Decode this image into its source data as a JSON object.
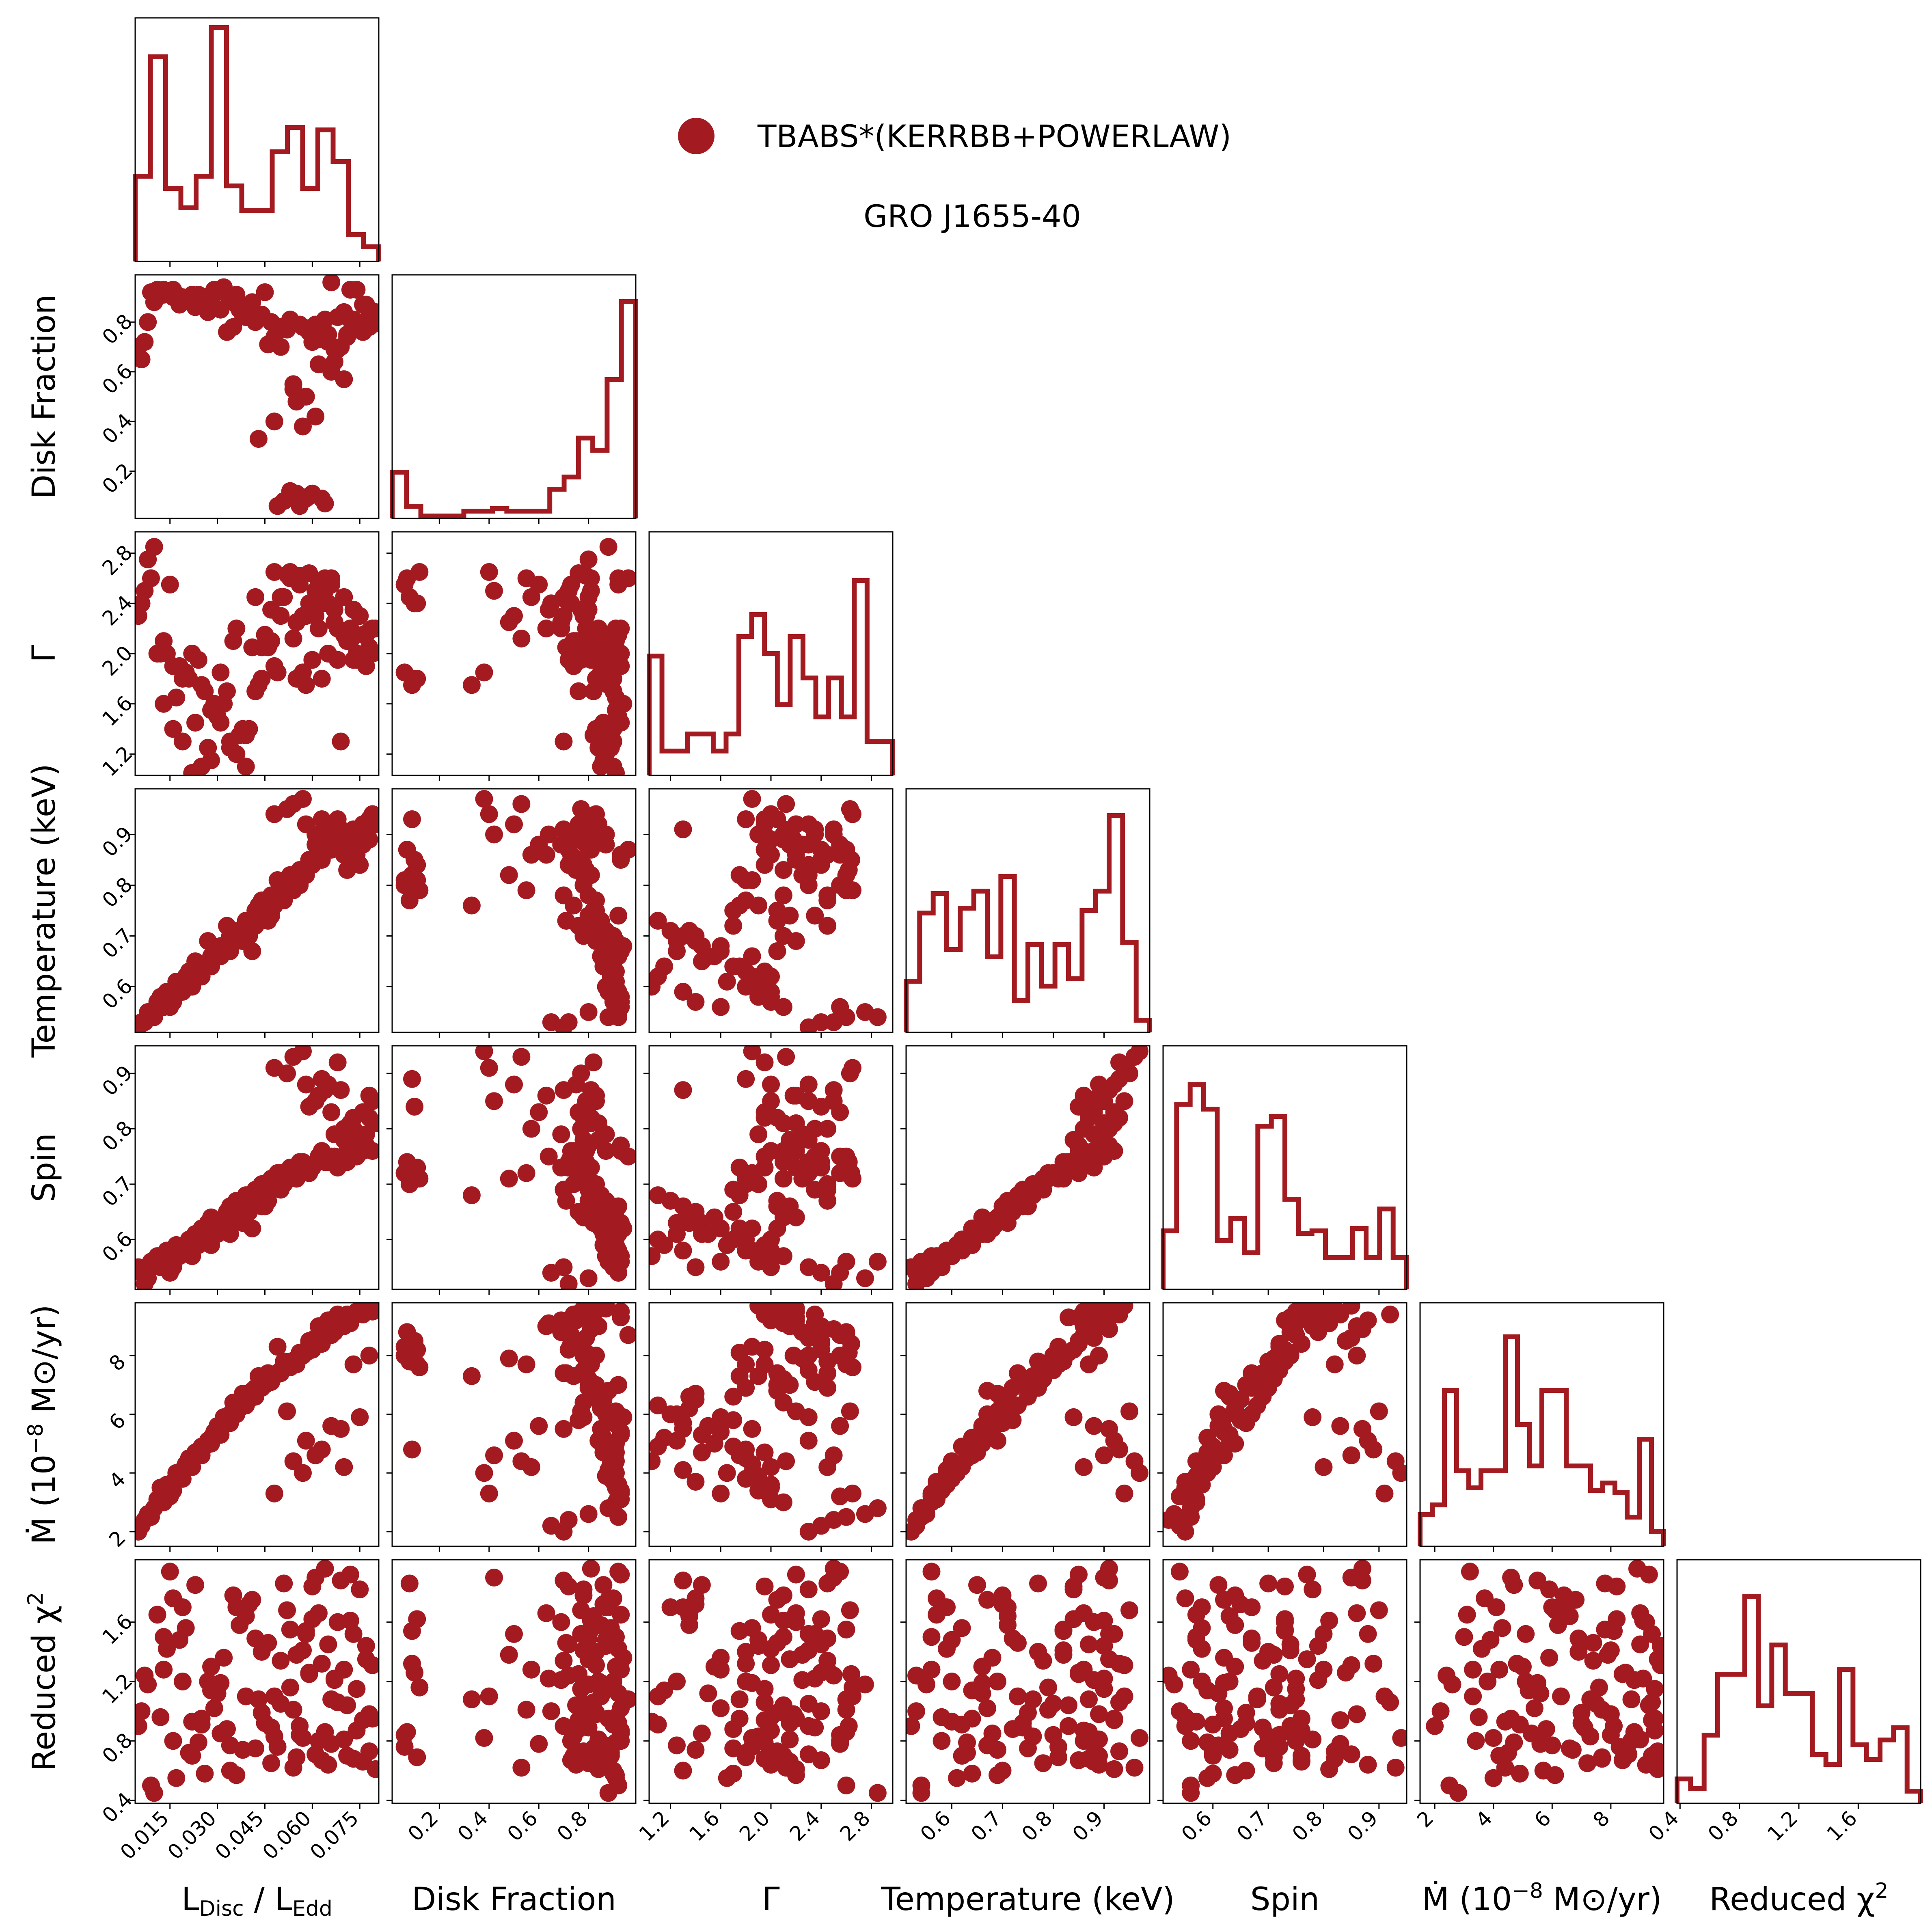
{
  "chart_data": {
    "type": "corner",
    "color": "#A31A20",
    "legend": {
      "label": "TBABS*(KERRBB+POWERLAW)",
      "placement": "top-center"
    },
    "annotation": "GRO J1655-40",
    "parameters": [
      {
        "key": "ldisc",
        "label": "L_Disc / L_Edd",
        "range": [
          0.004,
          0.081
        ],
        "ticks": [
          0.015,
          0.03,
          0.045,
          0.06,
          0.075
        ],
        "tick_labels": [
          "0.015",
          "0.030",
          "0.045",
          "0.060",
          "0.075"
        ]
      },
      {
        "key": "fdisk",
        "label": "Disk Fraction",
        "range": [
          0.01,
          0.99
        ],
        "ticks": [
          0.2,
          0.4,
          0.6,
          0.8
        ],
        "tick_labels": [
          "0.2",
          "0.4",
          "0.6",
          "0.8"
        ]
      },
      {
        "key": "gamma",
        "label": "Γ",
        "range": [
          1.03,
          2.97
        ],
        "ticks": [
          1.2,
          1.6,
          2.0,
          2.4,
          2.8
        ],
        "tick_labels": [
          "1.2",
          "1.6",
          "2.0",
          "2.4",
          "2.8"
        ]
      },
      {
        "key": "temp",
        "label": "Temperature (keV)",
        "range": [
          0.51,
          0.99
        ],
        "ticks": [
          0.6,
          0.7,
          0.8,
          0.9
        ],
        "tick_labels": [
          "0.6",
          "0.7",
          "0.8",
          "0.9"
        ]
      },
      {
        "key": "spin",
        "label": "Spin",
        "range": [
          0.51,
          0.95
        ],
        "ticks": [
          0.6,
          0.7,
          0.8,
          0.9
        ],
        "tick_labels": [
          "0.6",
          "0.7",
          "0.8",
          "0.9"
        ]
      },
      {
        "key": "mdot",
        "label": "Ṁ (10⁻⁸ M⊙/yr)",
        "range": [
          1.5,
          9.8
        ],
        "ticks": [
          2,
          4,
          6,
          8
        ],
        "tick_labels": [
          "2",
          "4",
          "6",
          "8"
        ]
      },
      {
        "key": "chi2",
        "label": "Reduced χ²",
        "range": [
          0.38,
          2.02
        ],
        "ticks": [
          0.4,
          0.8,
          1.2,
          1.6
        ],
        "tick_labels": [
          "0.4",
          "0.8",
          "1.2",
          "1.6"
        ]
      }
    ],
    "histograms": [
      [
        0.35,
        0.84,
        0.3,
        0.22,
        0.35,
        0.96,
        0.31,
        0.21,
        0.21,
        0.45,
        0.55,
        0.3,
        0.54,
        0.41,
        0.11,
        0.06
      ],
      [
        0.19,
        0.05,
        0.01,
        0.01,
        0.01,
        0.03,
        0.03,
        0.04,
        0.03,
        0.03,
        0.03,
        0.12,
        0.17,
        0.33,
        0.28,
        0.57,
        0.89
      ],
      [
        0.49,
        0.1,
        0.1,
        0.17,
        0.17,
        0.1,
        0.17,
        0.57,
        0.66,
        0.5,
        0.29,
        0.57,
        0.4,
        0.24,
        0.4,
        0.24,
        0.8,
        0.14,
        0.14
      ],
      [
        0.21,
        0.49,
        0.57,
        0.34,
        0.51,
        0.58,
        0.31,
        0.64,
        0.13,
        0.36,
        0.19,
        0.36,
        0.22,
        0.5,
        0.58,
        0.89,
        0.37,
        0.05
      ],
      [
        0.24,
        0.76,
        0.84,
        0.74,
        0.2,
        0.29,
        0.15,
        0.67,
        0.71,
        0.37,
        0.23,
        0.24,
        0.13,
        0.13,
        0.25,
        0.13,
        0.33,
        0.13
      ],
      [
        0.13,
        0.17,
        0.64,
        0.31,
        0.24,
        0.31,
        0.31,
        0.86,
        0.5,
        0.33,
        0.64,
        0.64,
        0.33,
        0.33,
        0.23,
        0.26,
        0.22,
        0.12,
        0.44,
        0.06
      ],
      [
        0.1,
        0.06,
        0.28,
        0.53,
        0.53,
        0.85,
        0.4,
        0.65,
        0.45,
        0.45,
        0.2,
        0.16,
        0.55,
        0.24,
        0.18,
        0.26,
        0.31,
        0.05
      ]
    ],
    "samples": {
      "ldisc": [
        0.005,
        0.009,
        0.013,
        0.016,
        0.019,
        0.022,
        0.025,
        0.028,
        0.031,
        0.034,
        0.036,
        0.039,
        0.042,
        0.044,
        0.047,
        0.05,
        0.053,
        0.056,
        0.059,
        0.062,
        0.065,
        0.068,
        0.071,
        0.074,
        0.077,
        0.079,
        0.006,
        0.011,
        0.017,
        0.023,
        0.027,
        0.033,
        0.041,
        0.048,
        0.054,
        0.058,
        0.061,
        0.066,
        0.07,
        0.075,
        0.078,
        0.014,
        0.021,
        0.029,
        0.037,
        0.045,
        0.052,
        0.057,
        0.063,
        0.069,
        0.073,
        0.008,
        0.018,
        0.026,
        0.035,
        0.043,
        0.049,
        0.055,
        0.06,
        0.064,
        0.067,
        0.072,
        0.076,
        0.012,
        0.02,
        0.03,
        0.038,
        0.046,
        0.051,
        0.056,
        0.059,
        0.062,
        0.065,
        0.068,
        0.01,
        0.015,
        0.024,
        0.032,
        0.04,
        0.047,
        0.053,
        0.058,
        0.061,
        0.064,
        0.071,
        0.074,
        0.077,
        0.08,
        0.007,
        0.016,
        0.022,
        0.028,
        0.034,
        0.039,
        0.044,
        0.05,
        0.055,
        0.06,
        0.066,
        0.07,
        0.073,
        0.078,
        0.013,
        0.019,
        0.025,
        0.031,
        0.036,
        0.042,
        0.048,
        0.054,
        0.057,
        0.063,
        0.067,
        0.072,
        0.076,
        0.079
      ],
      "fdisk": [
        0.7,
        0.92,
        0.91,
        0.93,
        0.9,
        0.89,
        0.88,
        0.91,
        0.93,
        0.9,
        0.87,
        0.85,
        0.82,
        0.83,
        0.8,
        0.78,
        0.81,
        0.79,
        0.76,
        0.73,
        0.72,
        0.69,
        0.74,
        0.77,
        0.8,
        0.79,
        0.65,
        0.93,
        0.91,
        0.86,
        0.84,
        0.76,
        0.88,
        0.4,
        0.53,
        0.5,
        0.42,
        0.6,
        0.57,
        0.78,
        0.83,
        0.92,
        0.89,
        0.93,
        0.85,
        0.92,
        0.77,
        0.38,
        0.09,
        0.7,
        0.81,
        0.8,
        0.87,
        0.9,
        0.78,
        0.33,
        0.06,
        0.48,
        0.11,
        0.07,
        0.64,
        0.93,
        0.87,
        0.91,
        0.89,
        0.92,
        0.83,
        0.71,
        0.08,
        0.06,
        0.1,
        0.63,
        0.75,
        0.82,
        0.88,
        0.92,
        0.91,
        0.94,
        0.86,
        0.8,
        0.12,
        0.09,
        0.79,
        0.81,
        0.75,
        0.93,
        0.87,
        0.84,
        0.72,
        0.9,
        0.91,
        0.86,
        0.89,
        0.82,
        0.83,
        0.7,
        0.11,
        0.72,
        0.96,
        0.84,
        0.77,
        0.78,
        0.93,
        0.88,
        0.9,
        0.85,
        0.91,
        0.8,
        0.74,
        0.55,
        0.78,
        0.73,
        0.69,
        0.81,
        0.76,
        0.83
      ],
      "gamma": [
        2.3,
        2.6,
        2.1,
        1.9,
        1.8,
        2.0,
        1.75,
        1.55,
        1.45,
        1.3,
        1.2,
        1.1,
        1.7,
        1.8,
        2.1,
        2.3,
        2.6,
        2.62,
        2.64,
        2.55,
        2.4,
        2.2,
        2.1,
        1.95,
        2.15,
        2.2,
        2.4,
        2.0,
        1.65,
        1.45,
        1.25,
        1.7,
        2.05,
        2.65,
        2.12,
        2.3,
        2.5,
        2.55,
        2.45,
        2.3,
        2.18,
        2.0,
        1.8,
        1.6,
        1.35,
        2.15,
        2.63,
        1.85,
        1.8,
        1.3,
        1.95,
        2.75,
        1.9,
        1.7,
        2.1,
        1.75,
        1.85,
        2.25,
        2.4,
        2.6,
        2.35,
        2.2,
        2.15,
        2.0,
        1.85,
        1.5,
        1.4,
        2.05,
        2.45,
        2.55,
        2.4,
        2.2,
        2.0,
        1.95,
        2.85,
        2.55,
        1.95,
        1.6,
        1.4,
        2.35,
        2.65,
        1.75,
        2.3,
        2.5,
        2.1,
        2.0,
        1.9,
        2.2,
        2.5,
        1.4,
        1.05,
        1.15,
        1.25,
        1.35,
        2.05,
        2.45,
        1.8,
        1.95,
        2.6,
        2.15,
        2.35,
        2.05,
        1.6,
        1.3,
        1.1,
        1.85,
        2.2,
        2.45,
        1.9,
        2.6,
        2.3,
        2.4,
        2.25,
        2.1,
        1.95,
        2.0
      ],
      "temp": [
        0.52,
        0.54,
        0.56,
        0.58,
        0.6,
        0.62,
        0.64,
        0.66,
        0.68,
        0.7,
        0.71,
        0.73,
        0.75,
        0.77,
        0.78,
        0.8,
        0.82,
        0.83,
        0.85,
        0.86,
        0.87,
        0.88,
        0.89,
        0.9,
        0.91,
        0.92,
        0.53,
        0.57,
        0.61,
        0.65,
        0.69,
        0.72,
        0.67,
        0.94,
        0.96,
        0.92,
        0.9,
        0.88,
        0.86,
        0.84,
        0.89,
        0.59,
        0.63,
        0.67,
        0.71,
        0.74,
        0.95,
        0.97,
        0.93,
        0.91,
        0.87,
        0.55,
        0.6,
        0.64,
        0.7,
        0.76,
        0.81,
        0.82,
        0.84,
        0.87,
        0.9,
        0.85,
        0.88,
        0.58,
        0.62,
        0.66,
        0.69,
        0.73,
        0.77,
        0.8,
        0.85,
        0.86,
        0.89,
        0.93,
        0.54,
        0.56,
        0.63,
        0.68,
        0.7,
        0.74,
        0.79,
        0.82,
        0.88,
        0.91,
        0.83,
        0.86,
        0.9,
        0.92,
        0.53,
        0.57,
        0.6,
        0.64,
        0.67,
        0.71,
        0.75,
        0.78,
        0.81,
        0.84,
        0.87,
        0.89,
        0.91,
        0.93,
        0.56,
        0.59,
        0.62,
        0.66,
        0.69,
        0.72,
        0.76,
        0.79,
        0.82,
        0.85,
        0.88,
        0.9,
        0.92,
        0.94
      ],
      "spin": [
        0.55,
        0.56,
        0.57,
        0.56,
        0.58,
        0.6,
        0.62,
        0.64,
        0.63,
        0.66,
        0.67,
        0.68,
        0.69,
        0.7,
        0.71,
        0.72,
        0.73,
        0.74,
        0.72,
        0.75,
        0.74,
        0.73,
        0.76,
        0.75,
        0.77,
        0.76,
        0.54,
        0.57,
        0.59,
        0.61,
        0.63,
        0.65,
        0.62,
        0.91,
        0.93,
        0.88,
        0.85,
        0.83,
        0.8,
        0.78,
        0.86,
        0.58,
        0.6,
        0.62,
        0.64,
        0.66,
        0.9,
        0.94,
        0.89,
        0.87,
        0.82,
        0.53,
        0.57,
        0.6,
        0.64,
        0.68,
        0.72,
        0.71,
        0.73,
        0.74,
        0.75,
        0.77,
        0.76,
        0.55,
        0.58,
        0.61,
        0.63,
        0.67,
        0.7,
        0.72,
        0.84,
        0.86,
        0.88,
        0.92,
        0.56,
        0.54,
        0.59,
        0.62,
        0.65,
        0.69,
        0.71,
        0.73,
        0.85,
        0.87,
        0.74,
        0.76,
        0.79,
        0.81,
        0.52,
        0.55,
        0.57,
        0.59,
        0.61,
        0.63,
        0.66,
        0.69,
        0.71,
        0.73,
        0.75,
        0.78,
        0.8,
        0.82,
        0.56,
        0.58,
        0.6,
        0.62,
        0.64,
        0.67,
        0.7,
        0.72,
        0.74,
        0.76,
        0.79,
        0.81,
        0.83,
        0.85
      ],
      "mdot": [
        2.0,
        2.5,
        3.0,
        3.4,
        3.8,
        4.2,
        4.6,
        5.0,
        5.3,
        5.7,
        6.0,
        6.3,
        6.6,
        6.9,
        7.2,
        7.5,
        7.8,
        8.1,
        8.4,
        8.7,
        9.0,
        9.2,
        9.4,
        9.5,
        9.6,
        9.5,
        2.2,
        3.1,
        4.0,
        4.7,
        5.1,
        5.8,
        6.8,
        3.3,
        4.4,
        5.1,
        4.6,
        5.6,
        4.2,
        5.9,
        8.0,
        3.6,
        4.5,
        5.4,
        6.2,
        7.0,
        6.1,
        4.0,
        4.8,
        5.5,
        7.7,
        2.6,
        3.9,
        4.9,
        6.4,
        7.3,
        8.3,
        7.9,
        8.2,
        8.8,
        9.1,
        9.3,
        9.6,
        3.5,
        4.3,
        5.6,
        6.7,
        7.4,
        7.8,
        8.0,
        8.5,
        9.0,
        9.2,
        9.4,
        2.8,
        3.2,
        4.7,
        5.9,
        6.5,
        7.1,
        7.6,
        8.1,
        8.6,
        8.9,
        9.3,
        9.5,
        9.7,
        9.6,
        2.4,
        3.7,
        4.4,
        5.2,
        6.0,
        6.6,
        7.0,
        7.4,
        7.7,
        8.2,
        8.7,
        9.0,
        9.4,
        9.6,
        3.3,
        4.1,
        4.9,
        5.5,
        6.1,
        6.9,
        7.3,
        7.7,
        8.0,
        8.4,
        8.8,
        9.1,
        9.4,
        9.7
      ],
      "chi2": [
        0.9,
        0.5,
        1.5,
        0.8,
        1.2,
        0.7,
        0.95,
        1.3,
        0.85,
        0.6,
        1.7,
        1.1,
        0.75,
        1.4,
        0.65,
        1.05,
        1.55,
        0.9,
        1.25,
        0.8,
        1.45,
        1.6,
        0.7,
        1.15,
        1.35,
        0.95,
        1.0,
        1.65,
        0.55,
        1.85,
        1.2,
        0.88,
        1.75,
        1.1,
        0.62,
        1.52,
        1.9,
        0.78,
        1.28,
        1.82,
        0.98,
        1.42,
        0.72,
        1.02,
        1.58,
        0.92,
        1.68,
        0.82,
        1.32,
        1.88,
        0.68,
        1.18,
        1.48,
        0.58,
        1.78,
        1.08,
        0.76,
        1.38,
        1.62,
        0.86,
        1.22,
        1.92,
        0.66,
        0.96,
        1.56,
        1.12,
        0.74,
        1.46,
        1.86,
        0.84,
        1.26,
        1.66,
        0.64,
        1.06,
        0.45,
        1.94,
        0.79,
        1.36,
        1.72,
        0.89,
        1.16,
        1.54,
        0.71,
        1.96,
        1.04,
        0.87,
        1.44,
        0.61,
        1.24,
        1.76,
        0.93,
        1.14,
        0.77,
        1.64,
        0.99,
        1.34,
        0.69,
        1.84,
        1.08,
        0.81,
        1.52,
        0.73,
        1.28,
        1.7,
        0.91,
        1.19,
        0.57,
        1.49,
        0.83,
        1.01,
        1.41,
        0.67,
        1.21,
        1.61,
        0.94,
        1.31
      ]
    }
  }
}
